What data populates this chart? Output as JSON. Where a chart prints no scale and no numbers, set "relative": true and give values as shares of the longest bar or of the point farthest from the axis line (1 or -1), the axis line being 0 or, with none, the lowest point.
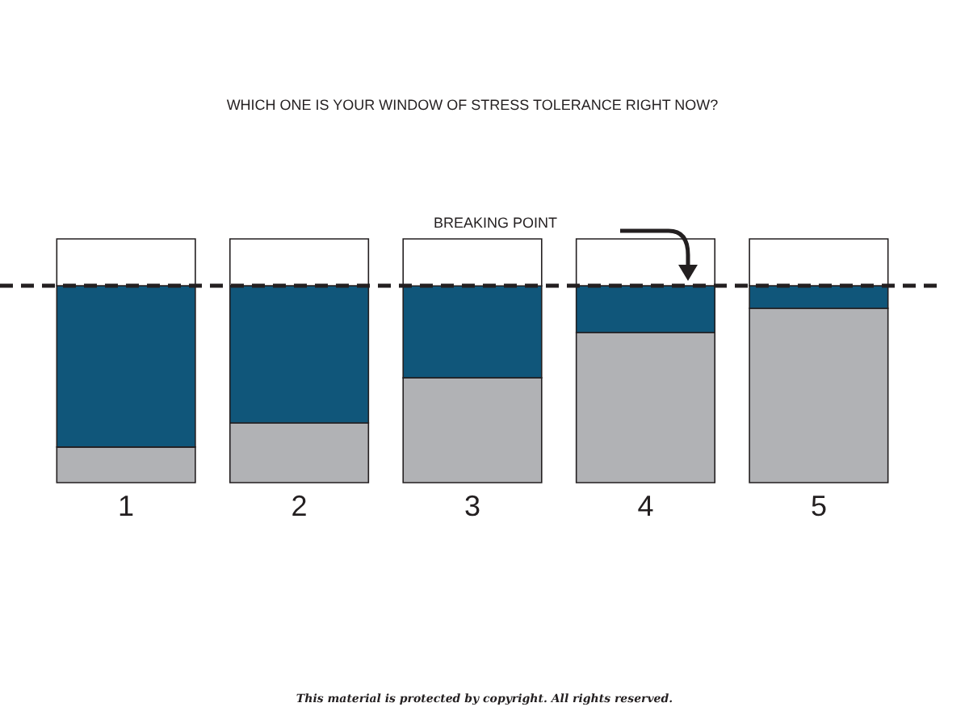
{
  "chart_data": {
    "type": "bar",
    "title": "WHICH ONE IS YOUR WINDOW OF STRESS TOLERANCE RIGHT NOW?",
    "categories": [
      "1",
      "2",
      "3",
      "4",
      "5"
    ],
    "stacked": true,
    "relative": true,
    "series": [
      {
        "color": "#b1b2b5",
        "values": [
          0.146,
          0.245,
          0.43,
          0.616,
          0.715
        ]
      },
      {
        "color": "#10567a",
        "values": [
          0.662,
          0.563,
          0.377,
          0.192,
          0.093
        ]
      },
      {
        "color": "#ffffff",
        "values": [
          0.192,
          0.192,
          0.193,
          0.192,
          0.192
        ]
      }
    ],
    "ref_lines": [
      {
        "axis": "y",
        "value": 0.808,
        "label": "BREAKING POINT",
        "color": "#231f20",
        "line_style": "dashed"
      }
    ],
    "annotations": [
      "This material is protected by copyright. All rights reserved."
    ]
  }
}
